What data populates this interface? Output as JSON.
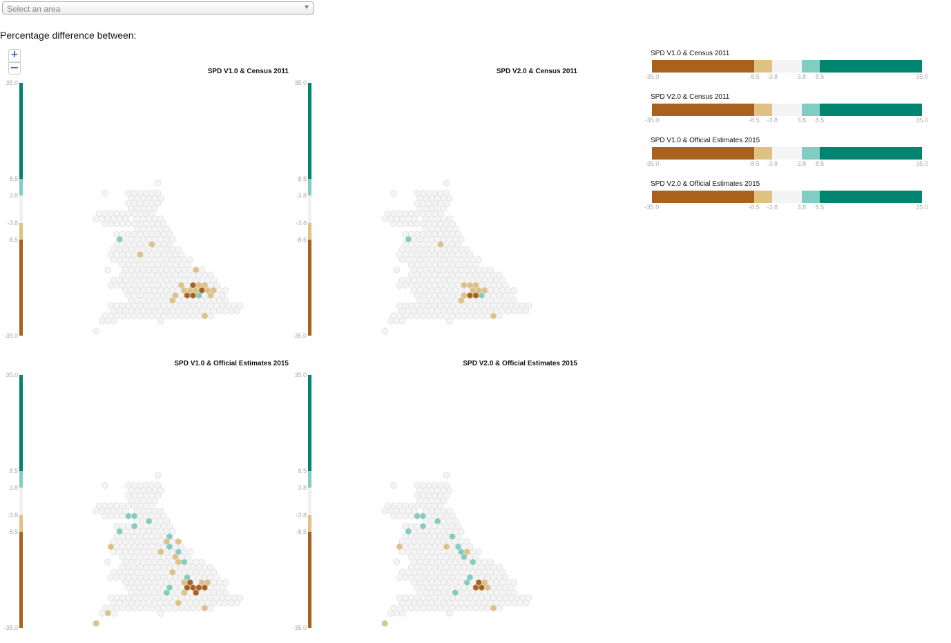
{
  "select": {
    "placeholder": "Select an area"
  },
  "heading": "Percentage difference between:",
  "zoom": {
    "in_label": "+",
    "out_label": "−"
  },
  "colors": {
    "strong_neg": "#a8621e",
    "mild_neg": "#dfc283",
    "neutral": "#f4f4f4",
    "mild_pos": "#80cdc1",
    "strong_pos": "#018571",
    "hex_stroke": "#e0e0e0"
  },
  "scale": {
    "min": -35.0,
    "max": 35.0,
    "breaks": [
      -35.0,
      -8.5,
      -3.8,
      3.8,
      8.5,
      35.0
    ],
    "labels": [
      "35.0",
      "8.5",
      "3.8",
      "-3.8",
      "-8.5",
      "-35.0"
    ],
    "legend_labels": [
      "-35.0",
      "-8.5",
      "-3.8",
      "3.8",
      "8.5",
      "35.0"
    ]
  },
  "panels": [
    {
      "title": "SPD V1.0 & Census 2011"
    },
    {
      "title": "SPD V2.0 & Census 2011"
    },
    {
      "title": "SPD V1.0 & Official Estimates 2015"
    },
    {
      "title": "SPD V2.0 & Official Estimates 2015"
    }
  ],
  "legend": [
    {
      "title": "SPD V1.0 & Census 2011"
    },
    {
      "title": "SPD V2.0 & Census 2011"
    },
    {
      "title": "SPD V1.0 & Official Estimates 2015"
    },
    {
      "title": "SPD V2.0 & Official Estimates 2015"
    }
  ],
  "chart_data": [
    {
      "type": "heatmap",
      "title": "SPD V1.0 & Census 2011",
      "classes_shown": {
        "strong_neg": 4,
        "mild_neg": 15,
        "mild_pos": 3,
        "strong_pos": 0
      }
    },
    {
      "type": "heatmap",
      "title": "SPD V2.0 & Census 2011",
      "classes_shown": {
        "strong_neg": 2,
        "mild_neg": 9,
        "mild_pos": 3,
        "strong_pos": 0
      }
    },
    {
      "type": "heatmap",
      "title": "SPD V1.0 & Official Estimates 2015",
      "classes_shown": {
        "strong_neg": 6,
        "mild_neg": 16,
        "mild_pos": 14,
        "strong_pos": 0
      }
    },
    {
      "type": "heatmap",
      "title": "SPD V2.0 & Official Estimates 2015",
      "classes_shown": {
        "strong_neg": 3,
        "mild_neg": 7,
        "mild_pos": 14,
        "strong_pos": 0
      }
    }
  ]
}
